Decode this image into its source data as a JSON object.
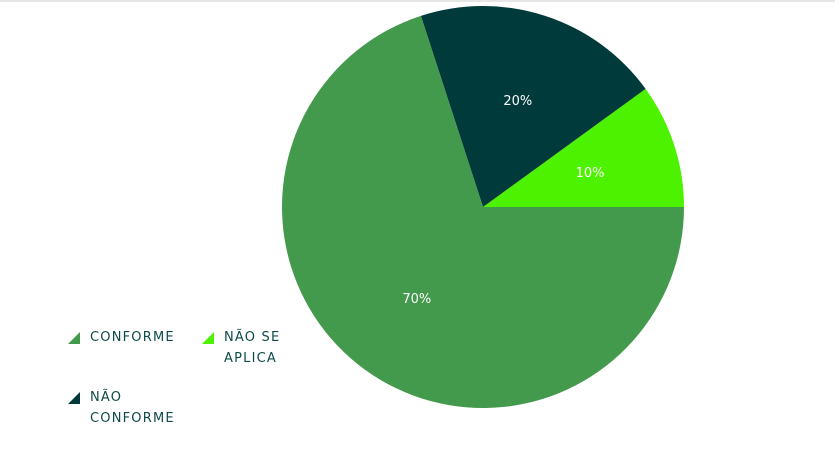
{
  "chart_data": {
    "type": "pie",
    "series": [
      {
        "name": "NÃO SE APLICA",
        "value": 10,
        "label": "10%",
        "color": "#4cf200"
      },
      {
        "name": "NÃO CONFORME",
        "value": 20,
        "label": "20%",
        "color": "#013a3a"
      },
      {
        "name": "CONFORME",
        "value": 70,
        "label": "70%",
        "color": "#43994c"
      }
    ],
    "legend": {
      "placement": "bottom-left",
      "items": [
        {
          "lines": [
            "CONFORME"
          ],
          "color": "#43994c"
        },
        {
          "lines": [
            "NÃO SE",
            "APLICA"
          ],
          "color": "#4cf200"
        },
        {
          "lines": [
            "NÃO",
            "CONFORME"
          ],
          "color": "#013a3a"
        }
      ]
    }
  }
}
